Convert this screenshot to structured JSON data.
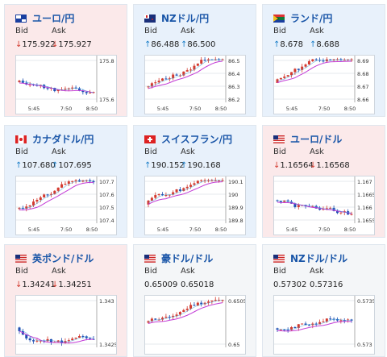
{
  "cards": [
    {
      "pair": "ユーロ/円",
      "bid_label": "Bid",
      "ask_label": "Ask",
      "bid": "175.922",
      "ask": "175.927",
      "dir": "down",
      "flag": "eu",
      "y_ticks": [
        "175.8",
        "175.6"
      ],
      "x_ticks": [
        "5:45",
        "7:50",
        "8:50"
      ]
    },
    {
      "pair": "NZドル/円",
      "bid_label": "Bid",
      "ask_label": "Ask",
      "bid": "86.488",
      "ask": "86.500",
      "dir": "up",
      "flag": "nz",
      "y_ticks": [
        "86.5",
        "86.4",
        "86.3",
        "86.2"
      ],
      "x_ticks": [
        "5:45",
        "7:50",
        "8:50"
      ]
    },
    {
      "pair": "ランド/円",
      "bid_label": "Bid",
      "ask_label": "Ask",
      "bid": "8.678",
      "ask": "8.688",
      "dir": "up",
      "flag": "za",
      "y_ticks": [
        "8.69",
        "8.68",
        "8.67",
        "8.66"
      ],
      "x_ticks": [
        "5:45",
        "7:50",
        "8:50"
      ]
    },
    {
      "pair": "カナダドル/円",
      "bid_label": "Bid",
      "ask_label": "Ask",
      "bid": "107.680",
      "ask": "107.695",
      "dir": "up",
      "flag": "ca",
      "y_ticks": [
        "107.7",
        "107.6",
        "107.5",
        "107.4"
      ],
      "x_ticks": [
        "5:45",
        "7:50",
        "8:50"
      ]
    },
    {
      "pair": "スイスフラン/円",
      "bid_label": "Bid",
      "ask_label": "Ask",
      "bid": "190.152",
      "ask": "190.168",
      "dir": "up",
      "flag": "ch",
      "y_ticks": [
        "190.1",
        "190",
        "189.9",
        "189.8"
      ],
      "x_ticks": [
        "5:45",
        "7:50",
        "8:50"
      ]
    },
    {
      "pair": "ユーロ/ドル",
      "bid_label": "Bid",
      "ask_label": "Ask",
      "bid": "1.16564",
      "ask": "1.16568",
      "dir": "down",
      "flag": "us",
      "y_ticks": [
        "1.167",
        "1.1665",
        "1.166",
        "1.1655"
      ],
      "x_ticks": [
        "5:45",
        "7:50",
        "8:50"
      ]
    },
    {
      "pair": "英ポンド/ドル",
      "bid_label": "Bid",
      "ask_label": "Ask",
      "bid": "1.34241",
      "ask": "1.34251",
      "dir": "down",
      "flag": "us",
      "y_ticks": [
        "1.343",
        "1.3425"
      ],
      "x_ticks": []
    },
    {
      "pair": "豪ドル/ドル",
      "bid_label": "Bid",
      "ask_label": "Ask",
      "bid": "0.65009",
      "ask": "0.65018",
      "dir": "flat",
      "flag": "us",
      "y_ticks": [
        "0.6505",
        "0.65"
      ],
      "x_ticks": []
    },
    {
      "pair": "NZドル/ドル",
      "bid_label": "Bid",
      "ask_label": "Ask",
      "bid": "0.57302",
      "ask": "0.57316",
      "dir": "flat",
      "flag": "us",
      "y_ticks": [
        "0.5735",
        "0.573"
      ],
      "x_ticks": []
    }
  ],
  "colors": {
    "up": "#1c7fc9",
    "down": "#d33a2f",
    "bull": "#d33a2f",
    "bear": "#1f4fb3",
    "ma": "#c23bd6",
    "ma2": "#3aa0d8"
  }
}
